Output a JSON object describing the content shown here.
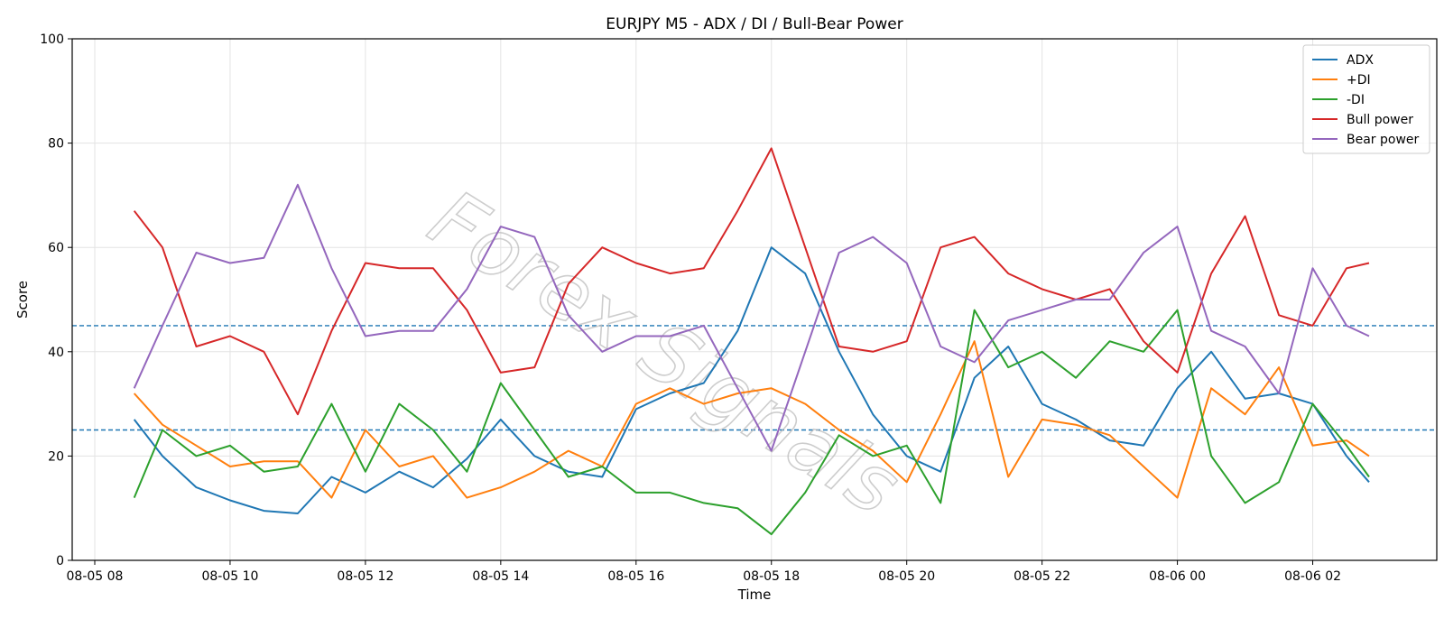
{
  "chart_data": {
    "type": "line",
    "title": "EURJPY M5 - ADX / DI / Bull-Bear Power",
    "xlabel": "Time",
    "ylabel": "Score",
    "xlim": [
      "08-05 07:40",
      "08-06 03:50"
    ],
    "ylim": [
      0,
      100
    ],
    "x_ticks": [
      "08-05 08",
      "08-05 10",
      "08-05 12",
      "08-05 14",
      "08-05 16",
      "08-05 18",
      "08-05 20",
      "08-05 22",
      "08-06 00",
      "08-06 02"
    ],
    "y_ticks": [
      0,
      20,
      40,
      60,
      80,
      100
    ],
    "grid": true,
    "legend_position": "top-right",
    "reference_lines": [
      {
        "y": 45,
        "color": "#1f77b4",
        "style": "dashed"
      },
      {
        "y": 25,
        "color": "#1f77b4",
        "style": "dashed"
      }
    ],
    "watermark": "Forex Signals",
    "x": [
      "08-05 08:35",
      "08-05 09:00",
      "08-05 09:30",
      "08-05 10:00",
      "08-05 10:30",
      "08-05 11:00",
      "08-05 11:30",
      "08-05 12:00",
      "08-05 12:30",
      "08-05 13:00",
      "08-05 13:30",
      "08-05 14:00",
      "08-05 14:30",
      "08-05 15:00",
      "08-05 15:30",
      "08-05 16:00",
      "08-05 16:30",
      "08-05 17:00",
      "08-05 17:30",
      "08-05 18:00",
      "08-05 18:30",
      "08-05 19:00",
      "08-05 19:30",
      "08-05 20:00",
      "08-05 20:30",
      "08-05 21:00",
      "08-05 21:30",
      "08-05 22:00",
      "08-05 22:30",
      "08-05 23:00",
      "08-05 23:30",
      "08-06 00:00",
      "08-06 00:30",
      "08-06 01:00",
      "08-06 01:30",
      "08-06 02:00",
      "08-06 02:30",
      "08-06 02:50"
    ],
    "series": [
      {
        "name": "ADX",
        "color": "#1f77b4",
        "values": [
          27,
          20,
          14,
          11.5,
          9.5,
          9,
          16,
          13,
          17,
          14,
          19.5,
          27,
          20,
          17,
          16,
          29,
          32,
          34,
          44,
          60,
          55,
          40,
          28,
          20,
          17,
          35,
          41,
          30,
          27,
          23,
          22,
          33,
          40,
          31,
          32,
          30,
          20,
          15
        ]
      },
      {
        "name": "+DI",
        "color": "#ff7f0e",
        "values": [
          32,
          26,
          22,
          18,
          19,
          19,
          12,
          25,
          18,
          20,
          12,
          14,
          17,
          21,
          18,
          30,
          33,
          30,
          32,
          33,
          30,
          25,
          21,
          15,
          28,
          42,
          16,
          27,
          26,
          24,
          18,
          12,
          33,
          28,
          37,
          22,
          23,
          20
        ]
      },
      {
        "name": "-DI",
        "color": "#2ca02c",
        "values": [
          12,
          25,
          20,
          22,
          17,
          18,
          30,
          17,
          30,
          25,
          17,
          34,
          25,
          16,
          18,
          13,
          13,
          11,
          10,
          5,
          13,
          24,
          20,
          22,
          11,
          48,
          37,
          40,
          35,
          42,
          40,
          48,
          20,
          11,
          15,
          30,
          22,
          16
        ]
      },
      {
        "name": "Bull power",
        "color": "#d62728",
        "values": [
          67,
          60,
          41,
          43,
          40,
          28,
          44,
          57,
          56,
          56,
          48,
          36,
          37,
          53,
          60,
          57,
          55,
          56,
          67,
          79,
          60,
          41,
          40,
          42,
          60,
          62,
          55,
          52,
          50,
          52,
          42,
          36,
          55,
          66,
          47,
          45,
          56,
          57
        ]
      },
      {
        "name": "Bear power",
        "color": "#9467bd",
        "values": [
          33,
          45,
          59,
          57,
          58,
          72,
          56,
          43,
          44,
          44,
          52,
          64,
          62,
          47,
          40,
          43,
          43,
          45,
          33,
          21,
          40,
          59,
          62,
          57,
          41,
          38,
          46,
          48,
          50,
          50,
          59,
          64,
          44,
          41,
          32,
          56,
          45,
          43
        ]
      }
    ]
  }
}
